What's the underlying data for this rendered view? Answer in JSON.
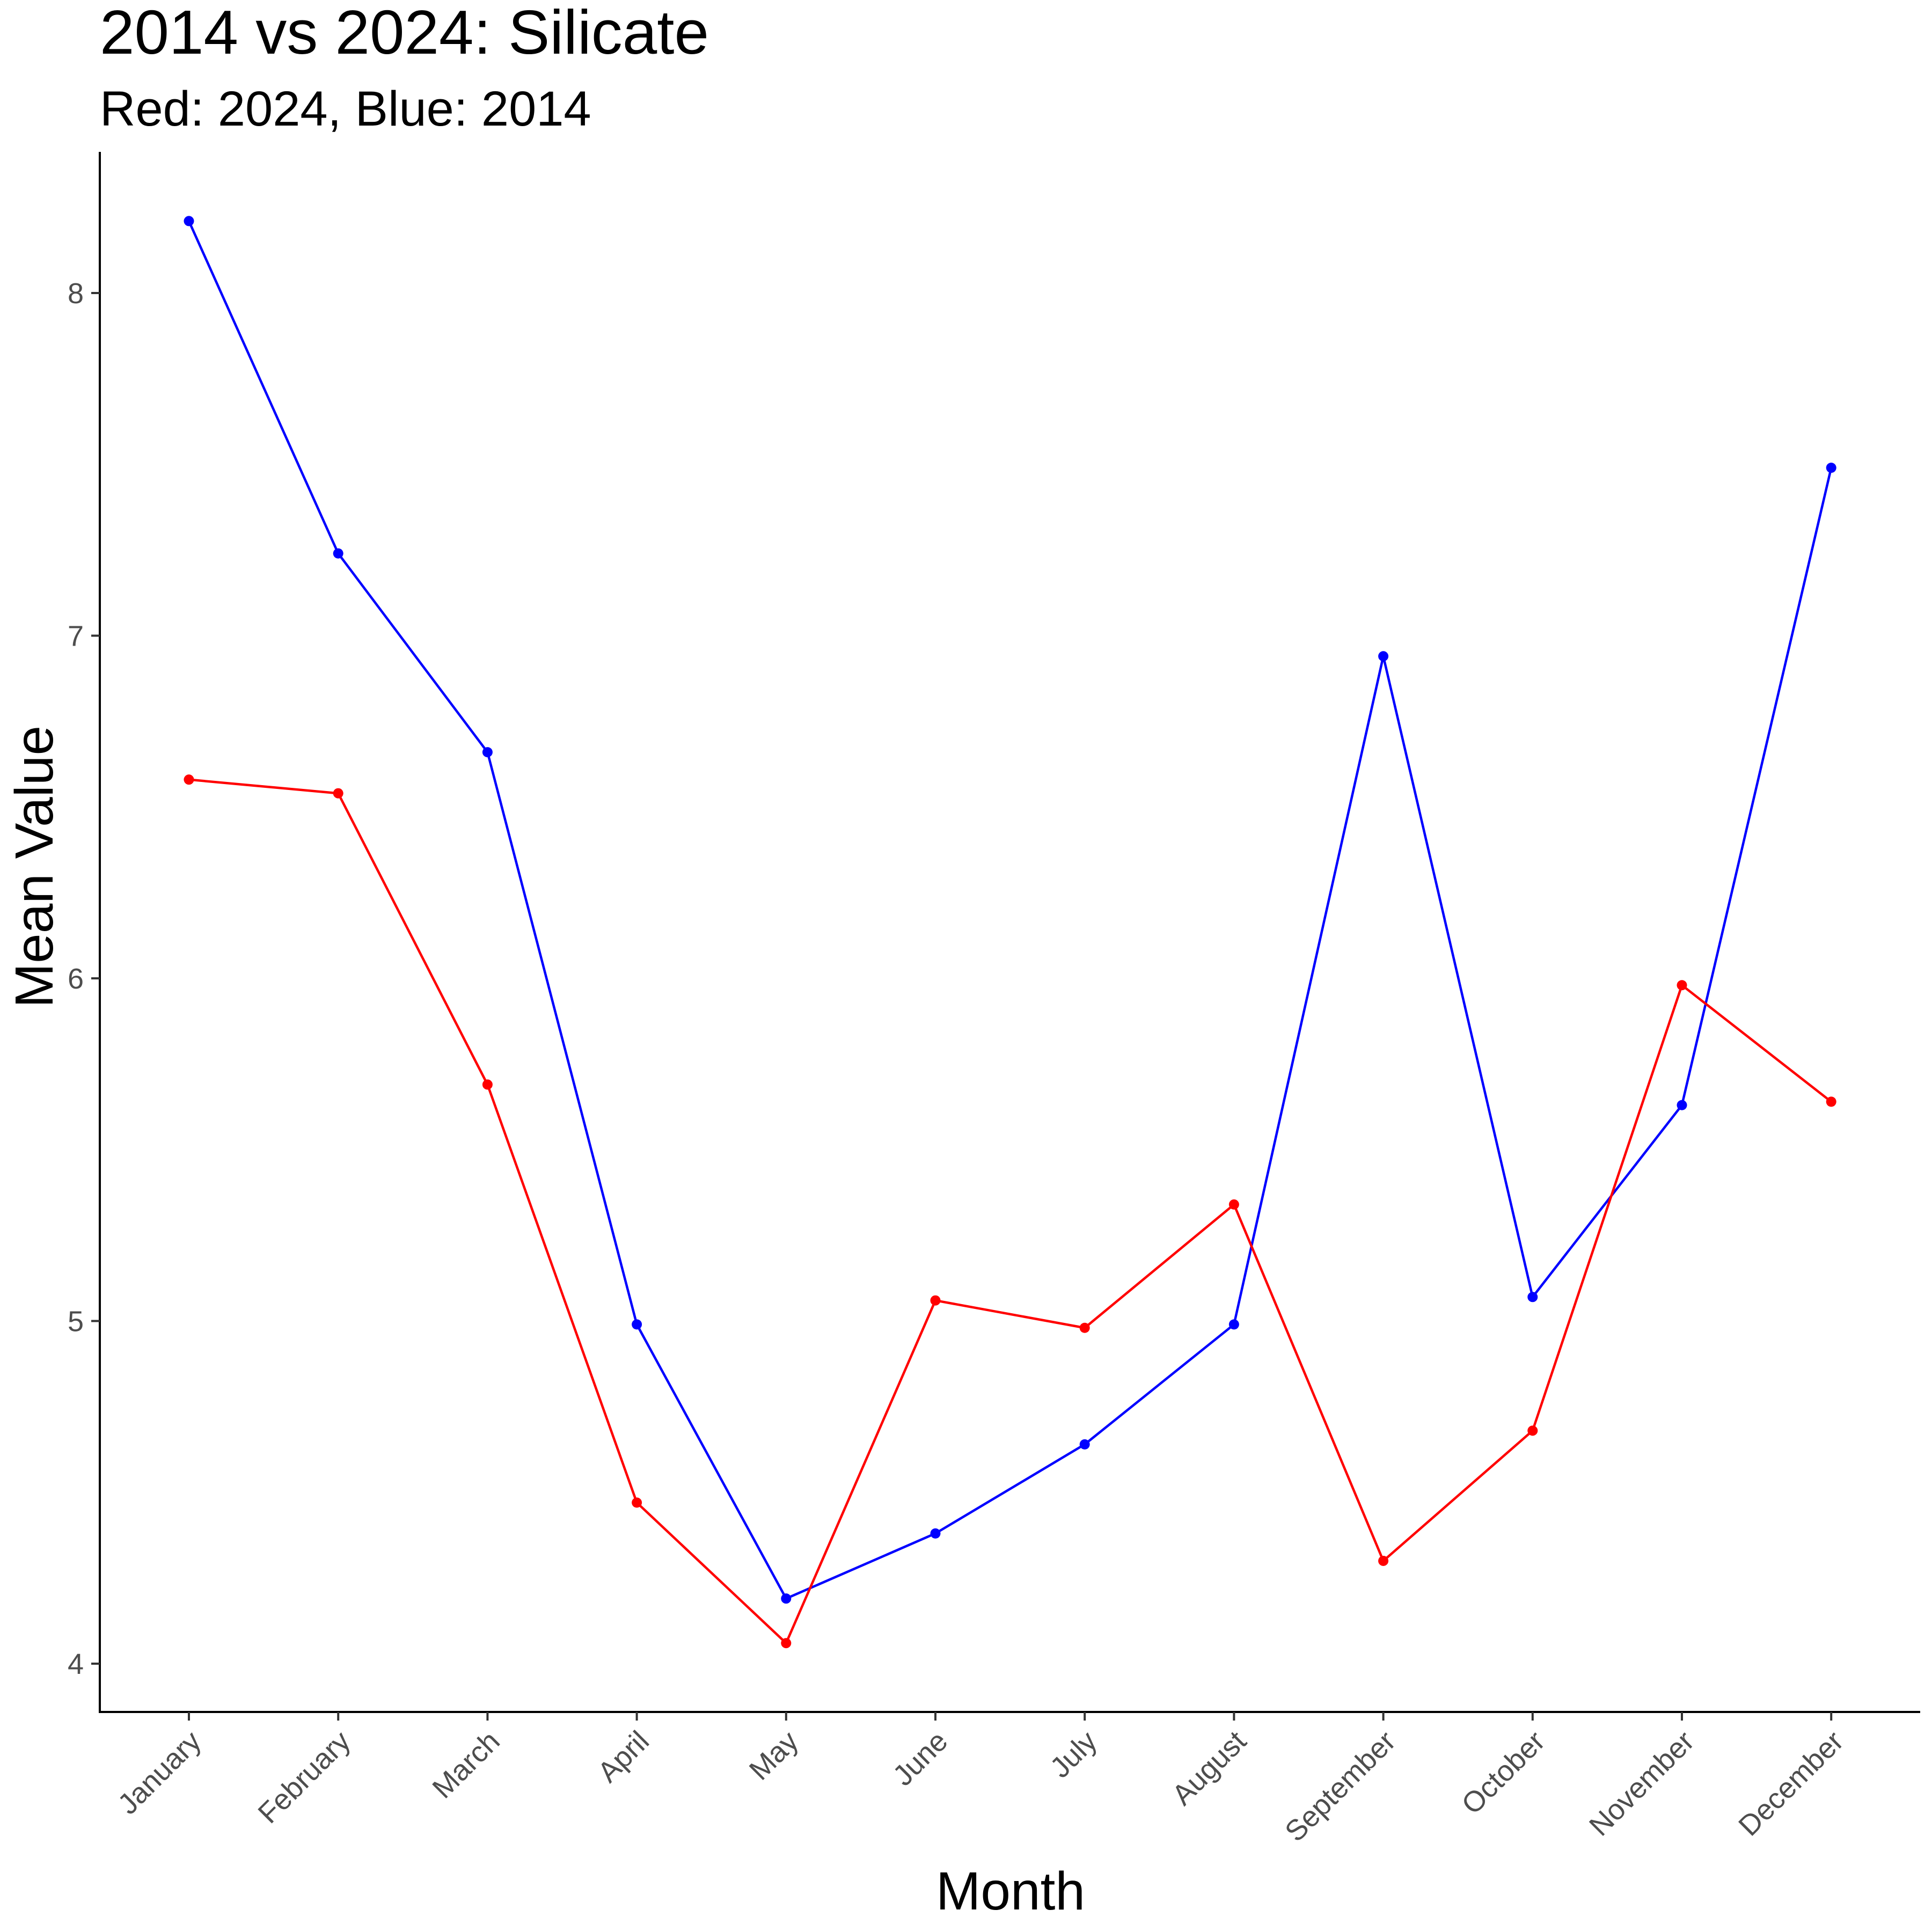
{
  "chart_data": {
    "type": "line",
    "title": "2014 vs 2024: Silicate",
    "subtitle": "Red: 2024, Blue: 2014",
    "xlabel": "Month",
    "ylabel": "Mean Value",
    "categories": [
      "January",
      "February",
      "March",
      "April",
      "May",
      "June",
      "July",
      "August",
      "September",
      "October",
      "November",
      "December"
    ],
    "ylim": [
      3.86,
      8.4
    ],
    "yticks": [
      4,
      5,
      6,
      7,
      8
    ],
    "grid": false,
    "series": [
      {
        "color": "#0000ff",
        "values": [
          8.21,
          7.24,
          6.66,
          4.99,
          4.19,
          4.38,
          4.64,
          4.99,
          6.94,
          5.07,
          5.63,
          7.49
        ]
      },
      {
        "color": "#ff0000",
        "values": [
          6.58,
          6.54,
          5.69,
          4.47,
          4.06,
          5.06,
          4.98,
          5.34,
          4.3,
          4.68,
          5.98,
          5.64
        ]
      }
    ]
  }
}
